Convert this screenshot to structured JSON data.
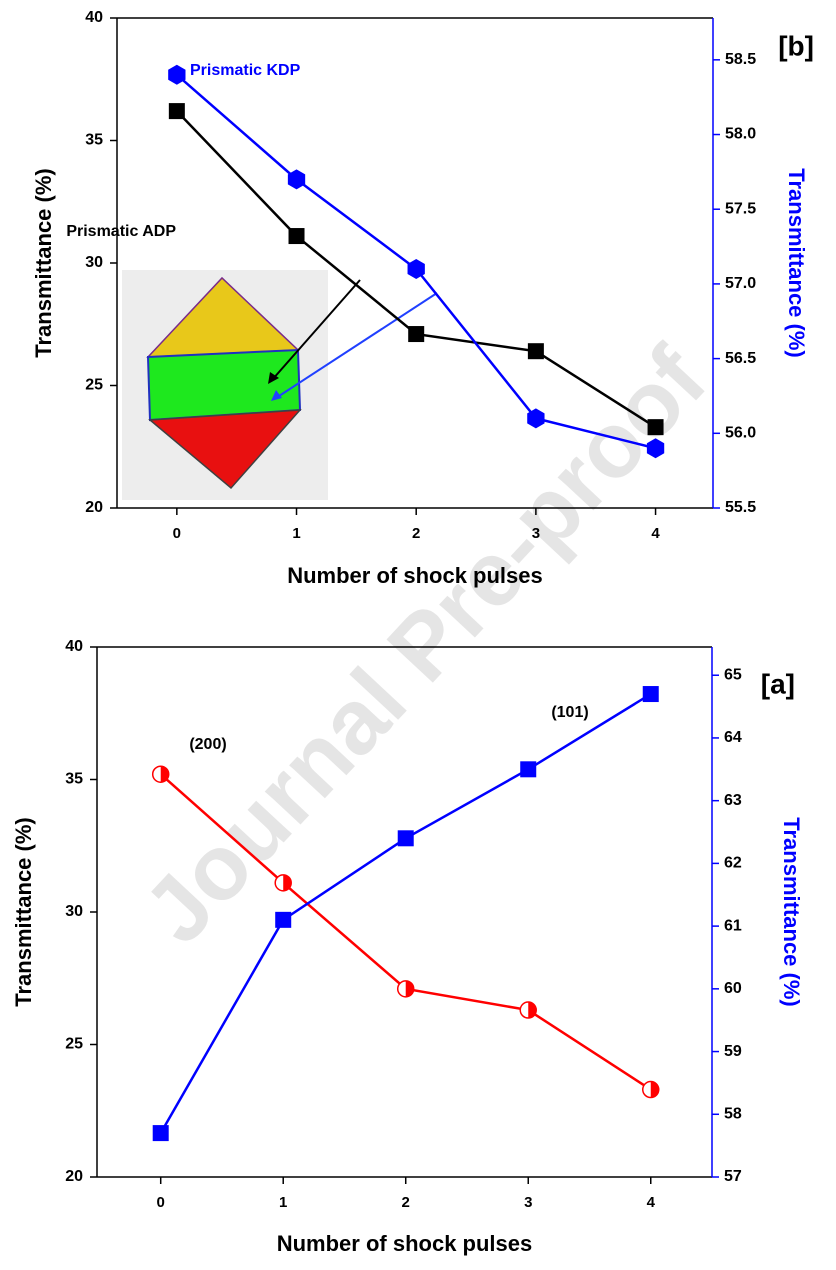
{
  "watermark": "Journal Pre-proof",
  "chart_data": [
    {
      "type": "line",
      "panel_label": "[b]",
      "x_label": "Number of shock pulses",
      "y_label": "Transmittance (%)",
      "y2_label": "Transmittance (%)",
      "x": [
        0,
        1,
        2,
        3,
        4
      ],
      "xlim": [
        -0.5,
        4.48
      ],
      "xticks": [
        0,
        1,
        2,
        3,
        4
      ],
      "ylim": [
        20,
        40
      ],
      "yticks": [
        20,
        25,
        30,
        35,
        40
      ],
      "y2lim": [
        55.5,
        58.78
      ],
      "y2ticks": [
        55.5,
        {
          "value": 56,
          "label": "56.0"
        },
        56.5,
        {
          "value": 57,
          "label": "57.0"
        },
        57.5,
        {
          "value": 58,
          "label": "58.0"
        },
        58.5
      ],
      "series": [
        {
          "name": "Prismatic ADP",
          "color": "#000000",
          "marker": "square",
          "values": [
            36.2,
            31.1,
            27.1,
            26.4,
            23.3
          ]
        },
        {
          "name": "Prismatic KDP",
          "color": "#0000ff",
          "marker": "hexagon",
          "axis": "y2",
          "values": [
            58.4,
            57.7,
            57.1,
            56.1,
            55.9
          ]
        }
      ]
    },
    {
      "type": "line",
      "panel_label": "[a]",
      "x_label": "Number of shock pulses",
      "y_label": "Transmittance (%)",
      "y2_label": "Transmittance (%)",
      "x": [
        0,
        1,
        2,
        3,
        4
      ],
      "xlim": [
        -0.52,
        4.5
      ],
      "xticks": [
        0,
        1,
        2,
        3,
        4
      ],
      "ylim": [
        20,
        40
      ],
      "yticks": [
        20,
        25,
        30,
        35,
        40
      ],
      "y2lim": [
        57,
        65.45
      ],
      "y2ticks": [
        57,
        58,
        59,
        60,
        61,
        62,
        63,
        64,
        65
      ],
      "series": [
        {
          "name": "(200)",
          "color": "#ff0000",
          "marker": "half-circle",
          "values": [
            35.2,
            31.1,
            27.1,
            26.3,
            23.3
          ]
        },
        {
          "name": "(101)",
          "color": "#0000ff",
          "marker": "square",
          "axis": "y2",
          "values": [
            57.7,
            61.1,
            62.4,
            63.5,
            64.7
          ]
        }
      ]
    }
  ]
}
